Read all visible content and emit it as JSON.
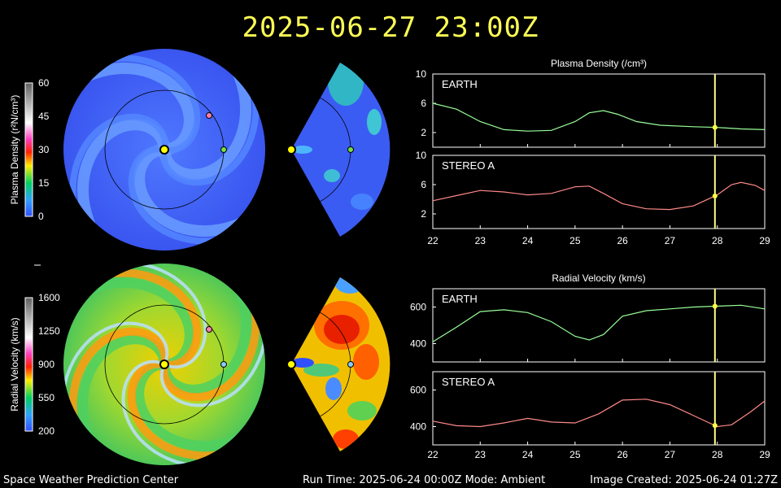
{
  "title": "2025-06-27  23:00Z",
  "footer": {
    "left": "Space Weather Prediction Center",
    "middle": "Run Time: 2025-06-24 00:00Z  Mode: Ambient",
    "right": "Image Created: 2025-06-24 01:27Z"
  },
  "colors": {
    "title": "#ffff55",
    "earth_line": "#99ff99",
    "stereo_line": "#ff8888",
    "time_marker": "#ffff88",
    "frame": "#ffffff"
  },
  "colorbars": [
    {
      "label": "Plasma Density (r²N/cm³)",
      "ticks": [
        "60",
        "45",
        "30",
        "15",
        "0"
      ]
    },
    {
      "label": "Radial Velocity (km/s)",
      "ticks": [
        "1600",
        "1250",
        "900",
        "550",
        "200"
      ]
    }
  ],
  "maps": {
    "density": {
      "field": "plasma-density",
      "earth_marker": "green",
      "stereo_marker": "pink"
    },
    "velocity": {
      "field": "radial-velocity",
      "earth_marker": "light-blue",
      "stereo_marker": "pink"
    }
  },
  "chart_data": [
    {
      "type": "line",
      "title": "Plasma Density (/cm³)",
      "panels": [
        {
          "name": "EARTH",
          "x": [
            22,
            22.5,
            23,
            23.5,
            24,
            24.5,
            25,
            25.3,
            25.6,
            25.9,
            26.3,
            26.8,
            27.5,
            28,
            28.5,
            29
          ],
          "y": [
            6,
            5.2,
            3.5,
            2.4,
            2.2,
            2.3,
            3.5,
            4.7,
            5.0,
            4.5,
            3.5,
            3.0,
            2.8,
            2.7,
            2.5,
            2.4
          ]
        },
        {
          "name": "STEREO A",
          "x": [
            22,
            22.5,
            23,
            23.5,
            24,
            24.5,
            25,
            25.3,
            25.6,
            26,
            26.5,
            27,
            27.5,
            28,
            28.3,
            28.5,
            28.8,
            29
          ],
          "y": [
            3.8,
            4.5,
            5.2,
            5.0,
            4.6,
            4.8,
            5.7,
            5.8,
            4.8,
            3.4,
            2.7,
            2.6,
            3.1,
            4.6,
            6.0,
            6.3,
            5.9,
            5.2
          ]
        }
      ],
      "ylim": [
        0,
        10
      ],
      "yticks": [
        2,
        6,
        10
      ],
      "xlim": [
        22,
        29
      ],
      "xticks": [
        22,
        23,
        24,
        25,
        26,
        27,
        28,
        29
      ],
      "marker_x": 27.95
    },
    {
      "type": "line",
      "title": "Radial Velocity (km/s)",
      "panels": [
        {
          "name": "EARTH",
          "x": [
            22,
            22.5,
            23,
            23.5,
            24,
            24.5,
            25,
            25.3,
            25.6,
            26,
            26.5,
            27,
            27.5,
            28,
            28.5,
            29
          ],
          "y": [
            410,
            490,
            575,
            585,
            570,
            520,
            440,
            420,
            450,
            550,
            580,
            590,
            600,
            605,
            610,
            590
          ]
        },
        {
          "name": "STEREO A",
          "x": [
            22,
            22.5,
            23,
            23.5,
            24,
            24.5,
            25,
            25.5,
            26,
            26.5,
            27,
            27.5,
            28,
            28.3,
            28.7,
            29
          ],
          "y": [
            430,
            405,
            400,
            420,
            445,
            425,
            420,
            470,
            545,
            550,
            520,
            460,
            400,
            410,
            480,
            540
          ]
        }
      ],
      "ylim": [
        300,
        700
      ],
      "yticks": [
        400,
        600
      ],
      "xlim": [
        22,
        29
      ],
      "xticks": [
        22,
        23,
        24,
        25,
        26,
        27,
        28,
        29
      ],
      "marker_x": 27.95
    }
  ]
}
